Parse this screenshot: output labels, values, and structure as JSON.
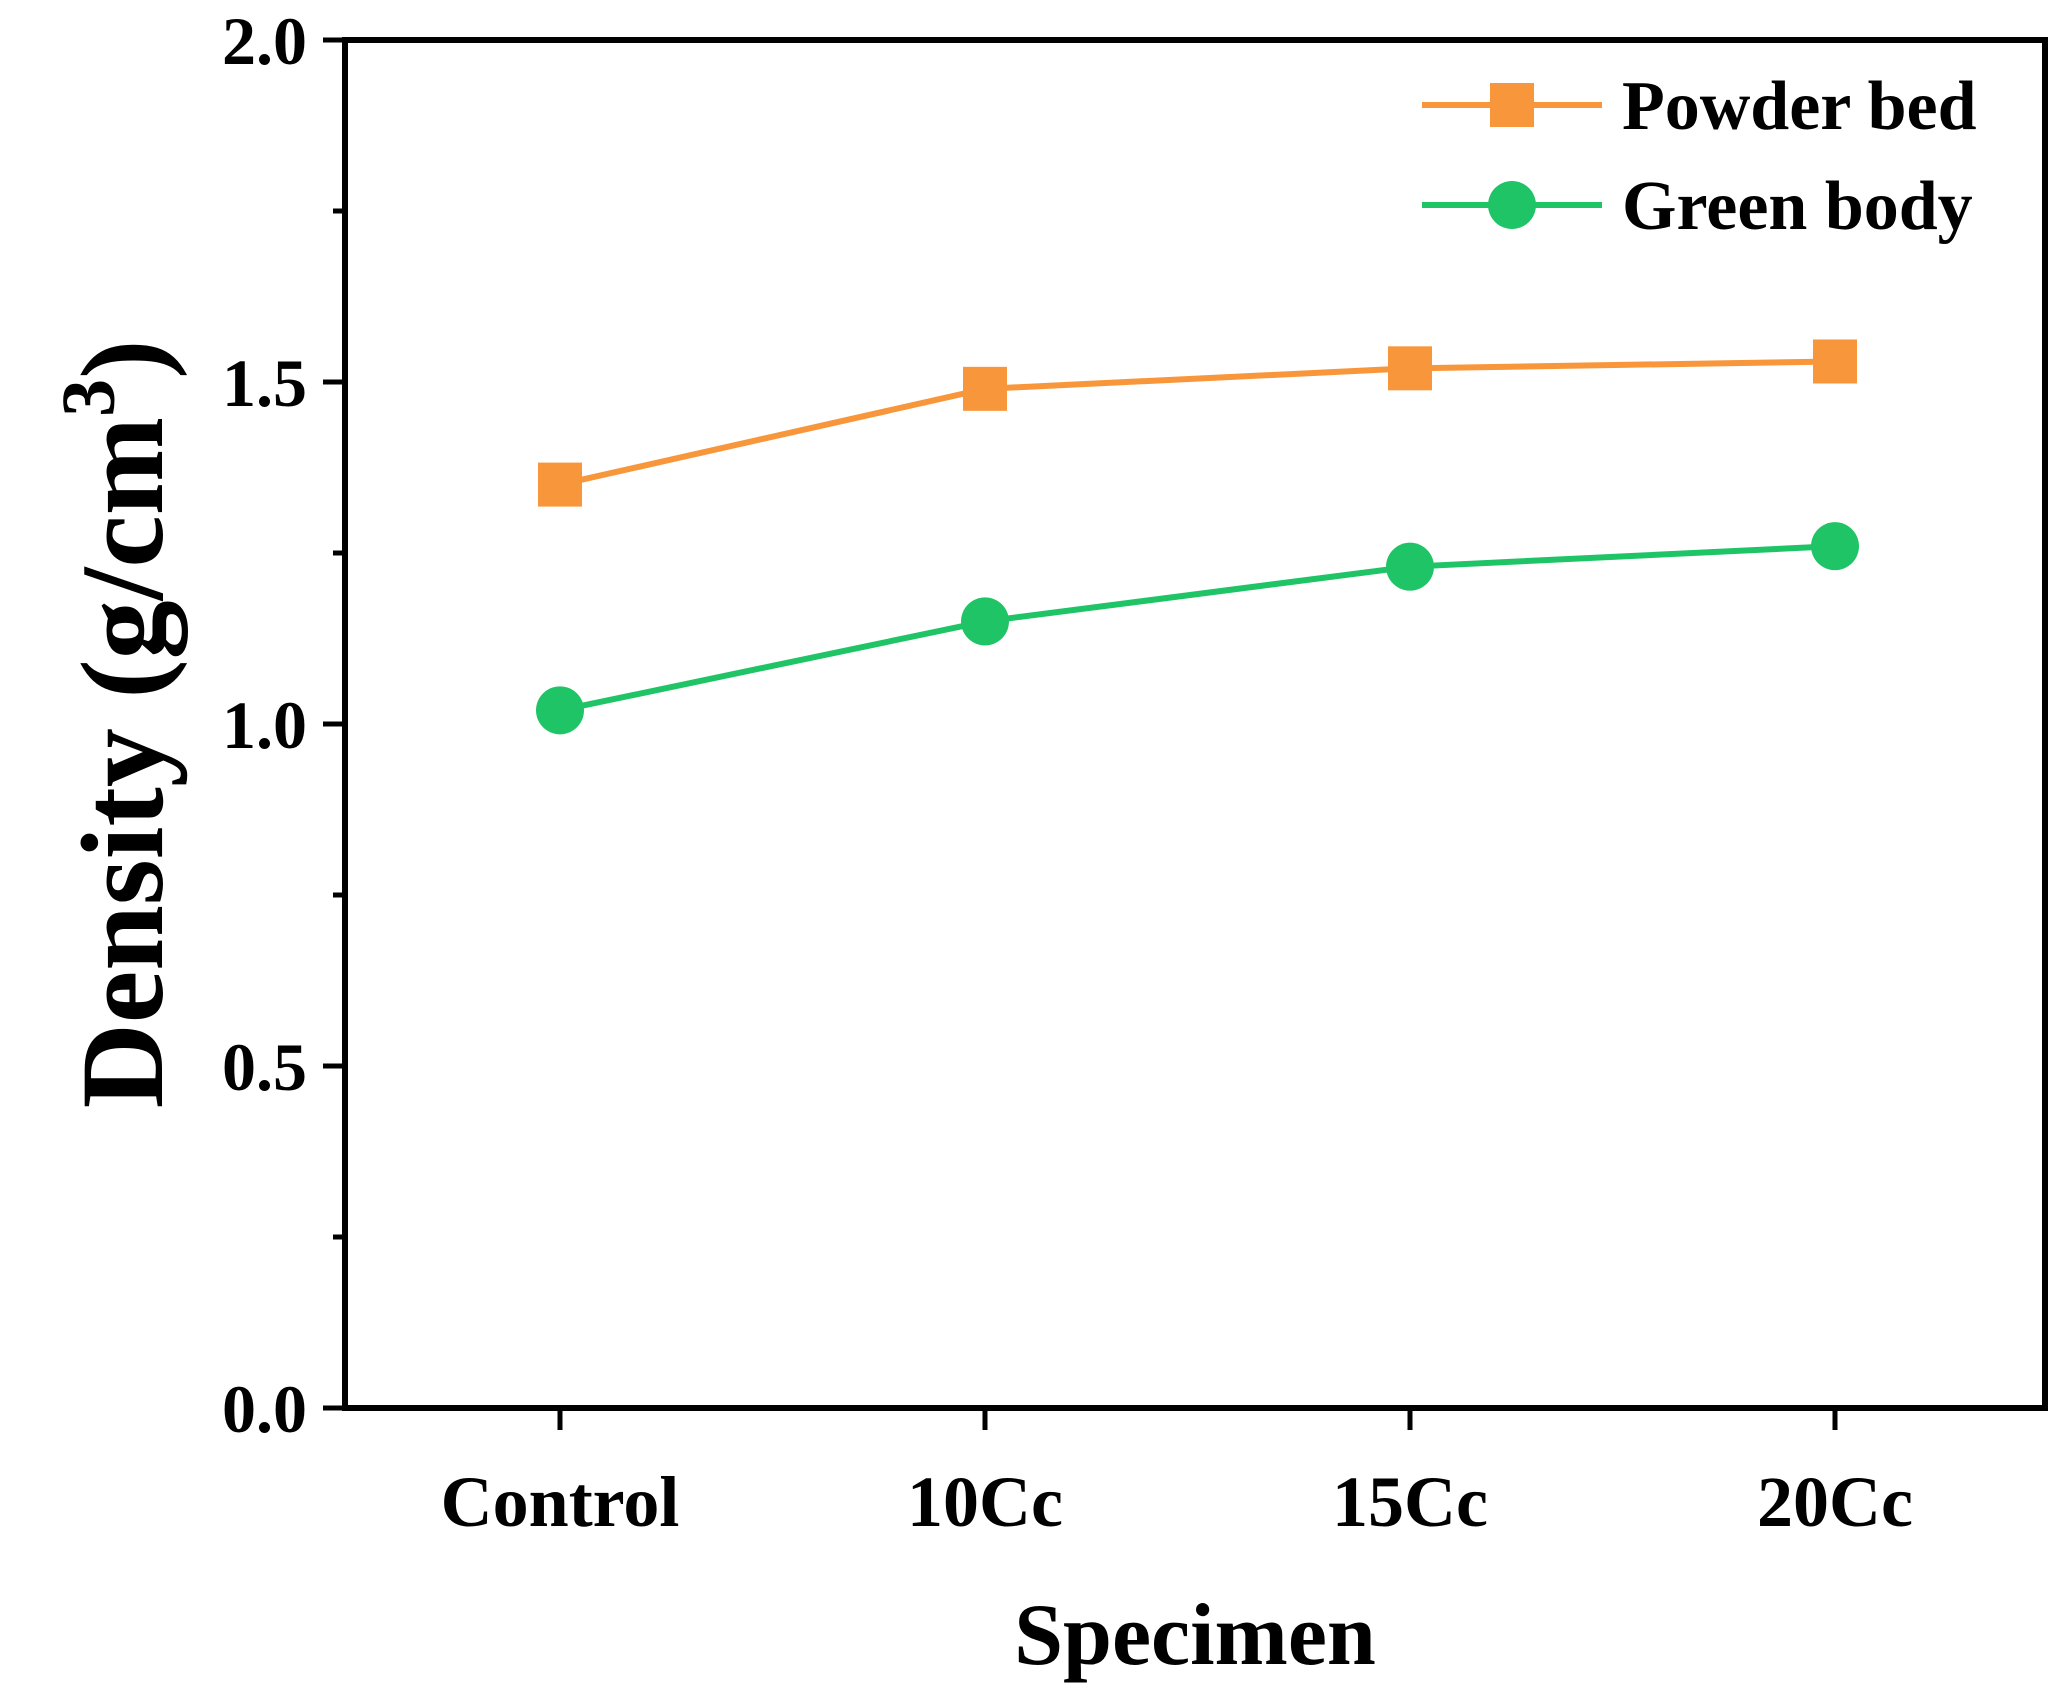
{
  "chart_data": {
    "type": "line",
    "xlabel": "Specimen",
    "ylabel": "Density (g/cm",
    "ylabel_superscript": "3",
    "ylabel_close": ")",
    "categories": [
      "Control",
      "10Cc",
      "15Cc",
      "20Cc"
    ],
    "ylim": [
      0.0,
      2.0
    ],
    "yticks": [
      "0.0",
      "0.5",
      "1.0",
      "1.5",
      "2.0"
    ],
    "grid": false,
    "legend_position": "top-right",
    "series": [
      {
        "name": "Powder bed",
        "marker": "square",
        "color": "#F7963A",
        "values": [
          1.35,
          1.49,
          1.52,
          1.53
        ]
      },
      {
        "name": "Green body",
        "marker": "circle",
        "color": "#1FC466",
        "values": [
          1.02,
          1.15,
          1.23,
          1.26
        ]
      }
    ]
  }
}
